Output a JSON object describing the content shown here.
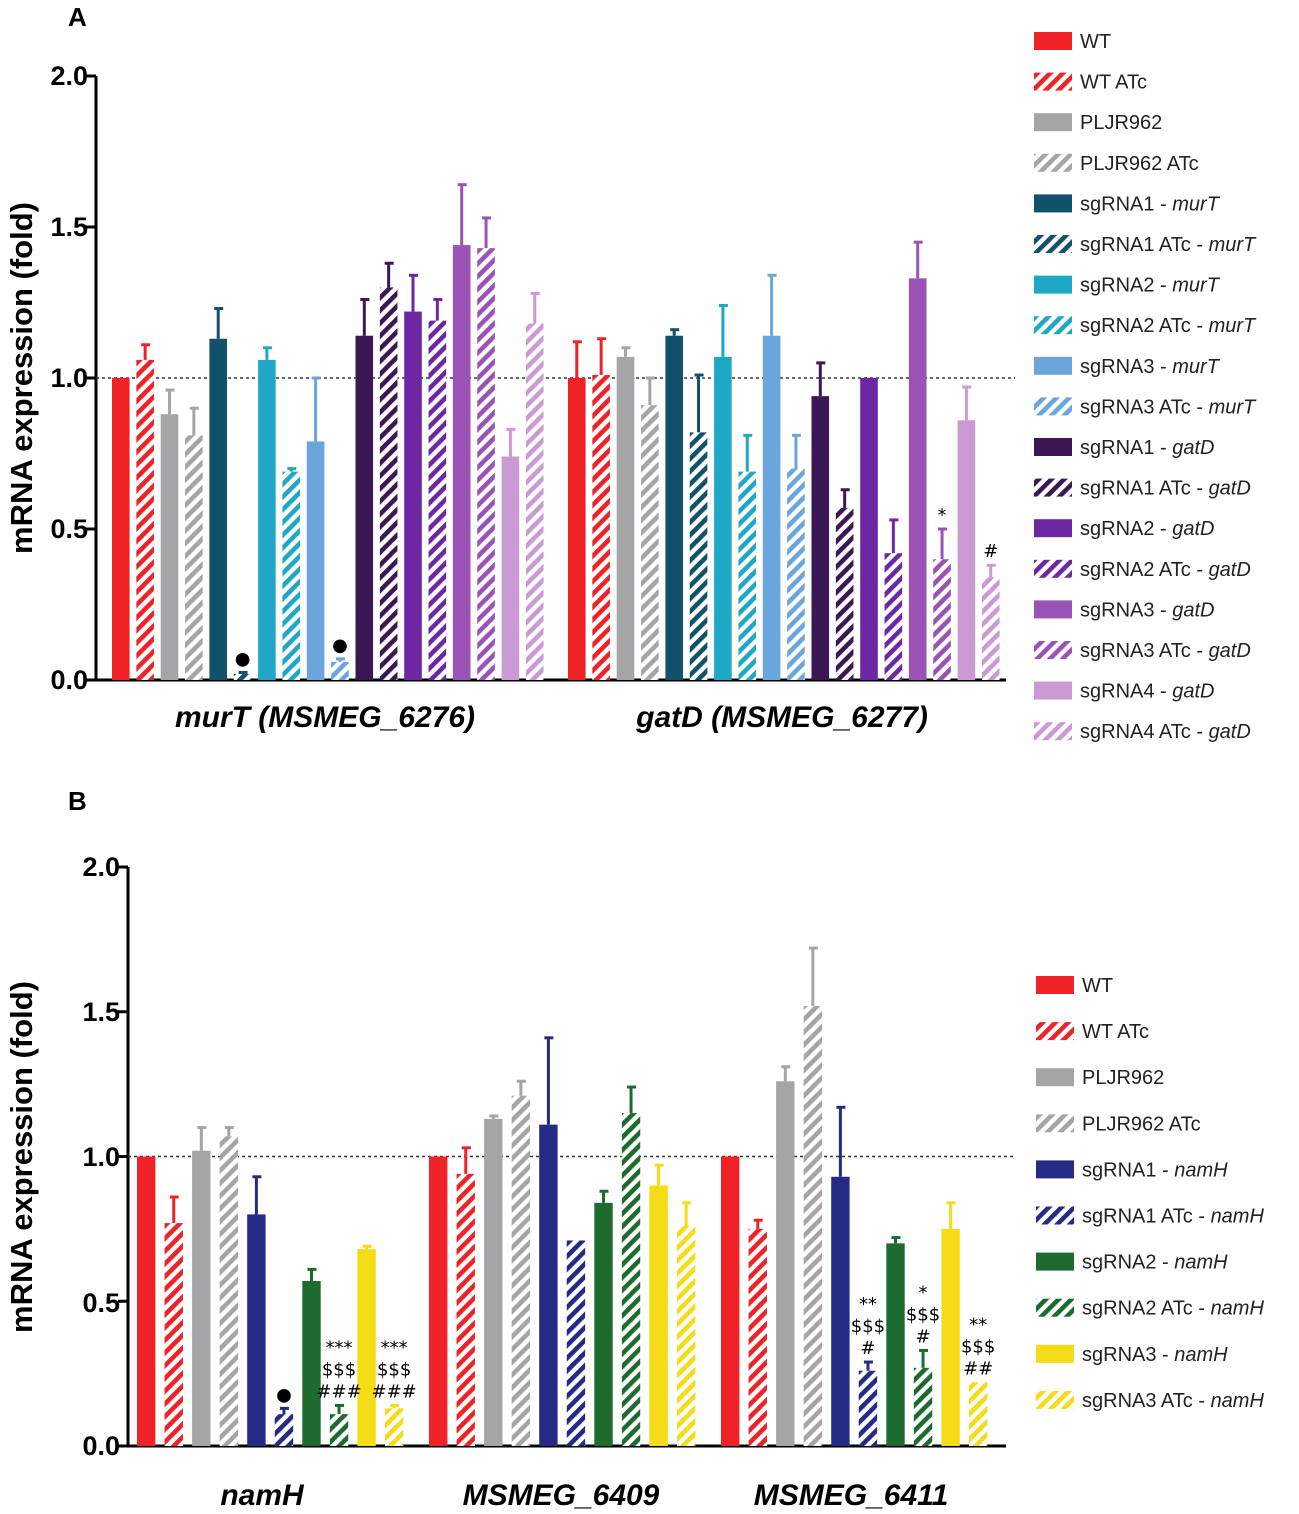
{
  "panels": [
    {
      "label": "A",
      "ylabel": "mRNA expression (fold)",
      "yticks": [
        "0.0",
        "0.5",
        "1.0",
        "1.5",
        "2.0"
      ],
      "legend": [
        {
          "name": "WT",
          "gene": "",
          "hatch": false,
          "color": "#ee2227"
        },
        {
          "name": "WT ATc",
          "gene": "",
          "hatch": true,
          "color": "#ee2227"
        },
        {
          "name": "PLJR962",
          "gene": "",
          "hatch": false,
          "color": "#a5a5a7"
        },
        {
          "name": "PLJR962 ATc",
          "gene": "",
          "hatch": true,
          "color": "#a5a5a7"
        },
        {
          "name": "sgRNA1 - ",
          "gene": "murT",
          "hatch": false,
          "color": "#11516a"
        },
        {
          "name": "sgRNA1 ATc - ",
          "gene": "murT",
          "hatch": true,
          "color": "#11516a"
        },
        {
          "name": "sgRNA2 - ",
          "gene": "murT",
          "hatch": false,
          "color": "#1ea8c5"
        },
        {
          "name": "sgRNA2 ATc - ",
          "gene": "murT",
          "hatch": true,
          "color": "#1ea8c5"
        },
        {
          "name": "sgRNA3 - ",
          "gene": "murT",
          "hatch": false,
          "color": "#6aa5dc"
        },
        {
          "name": "sgRNA3 ATc - ",
          "gene": "murT",
          "hatch": true,
          "color": "#6aa5dc"
        },
        {
          "name": "sgRNA1 - ",
          "gene": "gatD",
          "hatch": false,
          "color": "#3b1855"
        },
        {
          "name": "sgRNA1 ATc - ",
          "gene": "gatD",
          "hatch": true,
          "color": "#3b1855"
        },
        {
          "name": "sgRNA2 - ",
          "gene": "gatD",
          "hatch": false,
          "color": "#6e27a3"
        },
        {
          "name": "sgRNA2 ATc - ",
          "gene": "gatD",
          "hatch": true,
          "color": "#6e27a3"
        },
        {
          "name": "sgRNA3 - ",
          "gene": "gatD",
          "hatch": false,
          "color": "#9b52b5"
        },
        {
          "name": "sgRNA3 ATc - ",
          "gene": "gatD",
          "hatch": true,
          "color": "#9b52b5"
        },
        {
          "name": "sgRNA4 - ",
          "gene": "gatD",
          "hatch": false,
          "color": "#cb9ad5"
        },
        {
          "name": "sgRNA4 ATc - ",
          "gene": "gatD",
          "hatch": true,
          "color": "#cb9ad5"
        }
      ]
    },
    {
      "label": "B",
      "ylabel": "mRNA expression (fold)",
      "yticks": [
        "0.0",
        "0.5",
        "1.0",
        "1.5",
        "2.0"
      ],
      "legend": [
        {
          "name": "WT",
          "gene": "",
          "hatch": false,
          "color": "#ee2227"
        },
        {
          "name": "WT ATc",
          "gene": "",
          "hatch": true,
          "color": "#ee2227"
        },
        {
          "name": "PLJR962",
          "gene": "",
          "hatch": false,
          "color": "#a5a5a7"
        },
        {
          "name": "PLJR962 ATc",
          "gene": "",
          "hatch": true,
          "color": "#a5a5a7"
        },
        {
          "name": "sgRNA1 - ",
          "gene": "namH",
          "hatch": false,
          "color": "#252b84"
        },
        {
          "name": "sgRNA1 ATc - ",
          "gene": "namH",
          "hatch": true,
          "color": "#252b84"
        },
        {
          "name": "sgRNA2 - ",
          "gene": "namH",
          "hatch": false,
          "color": "#1e6b30"
        },
        {
          "name": "sgRNA2 ATc - ",
          "gene": "namH",
          "hatch": true,
          "color": "#1e6b30"
        },
        {
          "name": "sgRNA3 - ",
          "gene": "namH",
          "hatch": false,
          "color": "#f6dc16"
        },
        {
          "name": "sgRNA3 ATc - ",
          "gene": "namH",
          "hatch": true,
          "color": "#f6dc16"
        }
      ]
    }
  ],
  "chart_data": [
    {
      "type": "bar",
      "title": "A",
      "xlabel": "",
      "ylabel": "mRNA expression (fold)",
      "ylim": [
        0,
        2.0
      ],
      "reference_line": 1.0,
      "categories": [
        "murT (MSMEG_6276)",
        "gatD (MSMEG_6277)"
      ],
      "series": [
        {
          "name": "WT",
          "values": [
            1.0,
            1.0
          ],
          "errors": [
            0.0,
            0.12
          ]
        },
        {
          "name": "WT ATc",
          "values": [
            1.06,
            1.01
          ],
          "errors": [
            0.05,
            0.12
          ]
        },
        {
          "name": "PLJR962",
          "values": [
            0.88,
            1.07
          ],
          "errors": [
            0.08,
            0.03
          ]
        },
        {
          "name": "PLJR962 ATc",
          "values": [
            0.81,
            0.91
          ],
          "errors": [
            0.09,
            0.09
          ]
        },
        {
          "name": "sgRNA1 - murT",
          "values": [
            1.13,
            1.14
          ],
          "errors": [
            0.1,
            0.02
          ]
        },
        {
          "name": "sgRNA1 ATc - murT",
          "values": [
            0.02,
            0.82
          ],
          "errors": [
            0.005,
            0.19
          ]
        },
        {
          "name": "sgRNA2 - murT",
          "values": [
            1.06,
            1.07
          ],
          "errors": [
            0.04,
            0.17
          ]
        },
        {
          "name": "sgRNA2 ATc - murT",
          "values": [
            0.69,
            0.69
          ],
          "errors": [
            0.01,
            0.12
          ]
        },
        {
          "name": "sgRNA3 - murT",
          "values": [
            0.79,
            1.14
          ],
          "errors": [
            0.21,
            0.2
          ]
        },
        {
          "name": "sgRNA3 ATc - murT",
          "values": [
            0.06,
            0.7
          ],
          "errors": [
            0.01,
            0.11
          ]
        },
        {
          "name": "sgRNA1 - gatD",
          "values": [
            1.14,
            0.94
          ],
          "errors": [
            0.12,
            0.11
          ]
        },
        {
          "name": "sgRNA1 ATc - gatD",
          "values": [
            1.3,
            0.57
          ],
          "errors": [
            0.08,
            0.06
          ]
        },
        {
          "name": "sgRNA2 - gatD",
          "values": [
            1.22,
            1.0
          ],
          "errors": [
            0.12,
            0.0
          ]
        },
        {
          "name": "sgRNA2 ATc - gatD",
          "values": [
            1.19,
            0.42
          ],
          "errors": [
            0.07,
            0.11
          ]
        },
        {
          "name": "sgRNA3 - gatD",
          "values": [
            1.44,
            1.33
          ],
          "errors": [
            0.2,
            0.12
          ]
        },
        {
          "name": "sgRNA3 ATc - gatD",
          "values": [
            1.43,
            0.4
          ],
          "errors": [
            0.1,
            0.1
          ]
        },
        {
          "name": "sgRNA4 - gatD",
          "values": [
            0.74,
            0.86
          ],
          "errors": [
            0.09,
            0.11
          ]
        },
        {
          "name": "sgRNA4 ATc - gatD",
          "values": [
            1.18,
            0.34
          ],
          "errors": [
            0.1,
            0.04
          ]
        }
      ],
      "annotations": [
        {
          "category": "murT (MSMEG_6276)",
          "series": "sgRNA1 ATc - murT",
          "text": "●"
        },
        {
          "category": "murT (MSMEG_6276)",
          "series": "sgRNA3 ATc - murT",
          "text": "●"
        },
        {
          "category": "gatD (MSMEG_6277)",
          "series": "sgRNA3 ATc - gatD",
          "text": "*"
        },
        {
          "category": "gatD (MSMEG_6277)",
          "series": "sgRNA4 ATc - gatD",
          "text": "#"
        }
      ]
    },
    {
      "type": "bar",
      "title": "B",
      "xlabel": "",
      "ylabel": "mRNA expression (fold)",
      "ylim": [
        0,
        2.0
      ],
      "reference_line": 1.0,
      "categories": [
        "namH",
        "MSMEG_6409",
        "MSMEG_6411"
      ],
      "series": [
        {
          "name": "WT",
          "values": [
            1.0,
            1.0,
            1.0
          ],
          "errors": [
            0.0,
            0.0,
            0.0
          ]
        },
        {
          "name": "WT ATc",
          "values": [
            0.77,
            0.94,
            0.75
          ],
          "errors": [
            0.09,
            0.09,
            0.03
          ]
        },
        {
          "name": "PLJR962",
          "values": [
            1.02,
            1.13,
            1.26
          ],
          "errors": [
            0.08,
            0.01,
            0.05
          ]
        },
        {
          "name": "PLJR962 ATc",
          "values": [
            1.07,
            1.21,
            1.52
          ],
          "errors": [
            0.03,
            0.05,
            0.2
          ]
        },
        {
          "name": "sgRNA1 - namH",
          "values": [
            0.8,
            1.11,
            0.93
          ],
          "errors": [
            0.13,
            0.3,
            0.24
          ]
        },
        {
          "name": "sgRNA1 ATc - namH",
          "values": [
            0.11,
            0.71,
            0.26
          ],
          "errors": [
            0.02,
            0.0,
            0.03
          ]
        },
        {
          "name": "sgRNA2 - namH",
          "values": [
            0.57,
            0.84,
            0.7
          ],
          "errors": [
            0.04,
            0.04,
            0.02
          ]
        },
        {
          "name": "sgRNA2 ATc - namH",
          "values": [
            0.11,
            1.15,
            0.27
          ],
          "errors": [
            0.03,
            0.09,
            0.06
          ]
        },
        {
          "name": "sgRNA3 - namH",
          "values": [
            0.68,
            0.9,
            0.75
          ],
          "errors": [
            0.01,
            0.07,
            0.09
          ]
        },
        {
          "name": "sgRNA3 ATc - namH",
          "values": [
            0.13,
            0.76,
            0.22
          ],
          "errors": [
            0.01,
            0.08,
            0.0
          ]
        }
      ],
      "annotations": [
        {
          "category": "namH",
          "series": "sgRNA1 ATc - namH",
          "text": "●"
        },
        {
          "category": "namH",
          "series": "sgRNA2 ATc - namH",
          "text": "***\n$$$\n###"
        },
        {
          "category": "namH",
          "series": "sgRNA3 ATc - namH",
          "text": "***\n$$$\n###"
        },
        {
          "category": "MSMEG_6411",
          "series": "sgRNA1 ATc - namH",
          "text": "**\n$$$\n#"
        },
        {
          "category": "MSMEG_6411",
          "series": "sgRNA2 ATc - namH",
          "text": "*\n$$$\n#"
        },
        {
          "category": "MSMEG_6411",
          "series": "sgRNA3 ATc - namH",
          "text": "**\n$$$\n##"
        }
      ]
    }
  ]
}
